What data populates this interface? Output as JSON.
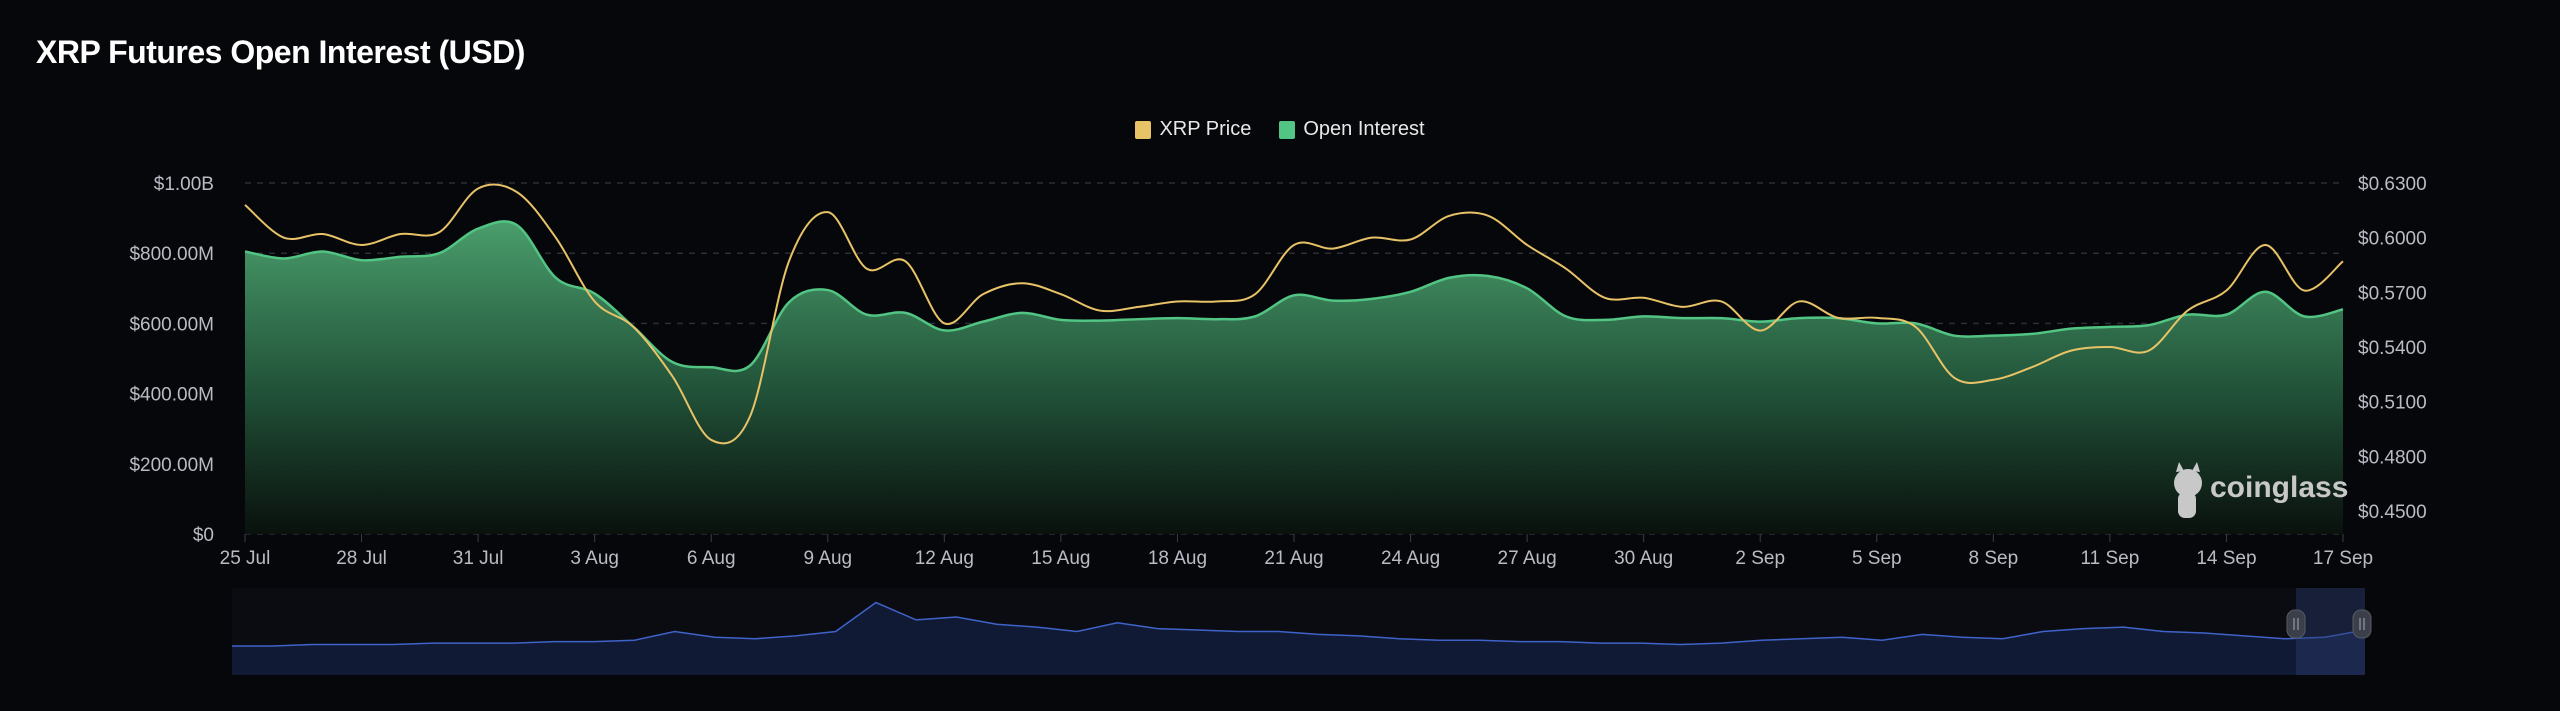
{
  "chart_data": {
    "type": "line",
    "title": "XRP Futures Open Interest (USD)",
    "legend": [
      {
        "name": "XRP Price",
        "color": "#e8c267"
      },
      {
        "name": "Open Interest",
        "color": "#52c483"
      }
    ],
    "legend_placement": "top-center",
    "grid": true,
    "x_ticks": [
      "25 Jul",
      "28 Jul",
      "31 Jul",
      "3 Aug",
      "6 Aug",
      "9 Aug",
      "12 Aug",
      "15 Aug",
      "18 Aug",
      "21 Aug",
      "24 Aug",
      "27 Aug",
      "30 Aug",
      "2 Sep",
      "5 Sep",
      "8 Sep",
      "11 Sep",
      "14 Sep",
      "17 Sep"
    ],
    "y_left": {
      "ticks": [
        "$0",
        "$200.00M",
        "$400.00M",
        "$600.00M",
        "$800.00M",
        "$1.00B"
      ],
      "range_usd_millions": [
        0,
        1000
      ]
    },
    "y_right": {
      "ticks": [
        "$0.4500",
        "$0.4800",
        "$0.5100",
        "$0.5400",
        "$0.5700",
        "$0.6000",
        "$0.6300"
      ],
      "range_usd": [
        0.45,
        0.63
      ]
    },
    "x_range": [
      "2024-07-25",
      "2024-09-17"
    ],
    "series": [
      {
        "name": "Open Interest",
        "axis": "left",
        "unit": "USD millions",
        "type": "area",
        "values": [
          805,
          785,
          805,
          780,
          790,
          800,
          870,
          880,
          730,
          685,
          590,
          490,
          475,
          480,
          660,
          695,
          625,
          630,
          580,
          605,
          630,
          610,
          608,
          612,
          615,
          612,
          620,
          680,
          665,
          670,
          690,
          730,
          735,
          700,
          620,
          610,
          620,
          615,
          615,
          605,
          615,
          615,
          600,
          600,
          565,
          565,
          570,
          585,
          590,
          595,
          625,
          625,
          690,
          620,
          640
        ]
      },
      {
        "name": "XRP Price",
        "axis": "right",
        "unit": "USD",
        "type": "line",
        "values": [
          0.618,
          0.6,
          0.602,
          0.596,
          0.602,
          0.603,
          0.627,
          0.625,
          0.6,
          0.565,
          0.551,
          0.524,
          0.489,
          0.502,
          0.587,
          0.614,
          0.583,
          0.587,
          0.553,
          0.569,
          0.575,
          0.569,
          0.56,
          0.562,
          0.565,
          0.565,
          0.569,
          0.596,
          0.594,
          0.6,
          0.599,
          0.612,
          0.612,
          0.596,
          0.583,
          0.567,
          0.567,
          0.562,
          0.565,
          0.549,
          0.565,
          0.556,
          0.556,
          0.551,
          0.523,
          0.522,
          0.529,
          0.538,
          0.54,
          0.538,
          0.56,
          0.571,
          0.596,
          0.571,
          0.587
        ]
      }
    ],
    "navigator": {
      "color": "#3f63c9",
      "selected_range": [
        "14 Sep",
        "17 Sep"
      ],
      "values": [
        20,
        20,
        21,
        21,
        21,
        22,
        22,
        22,
        23,
        23,
        24,
        30,
        26,
        25,
        27,
        30,
        50,
        38,
        40,
        35,
        33,
        30,
        36,
        32,
        31,
        30,
        30,
        28,
        27,
        25,
        24,
        24,
        23,
        23,
        22,
        22,
        21,
        22,
        24,
        25,
        26,
        24,
        28,
        26,
        25,
        30,
        32,
        33,
        30,
        29,
        27,
        25,
        26,
        31
      ]
    },
    "watermark": "coinglass"
  }
}
